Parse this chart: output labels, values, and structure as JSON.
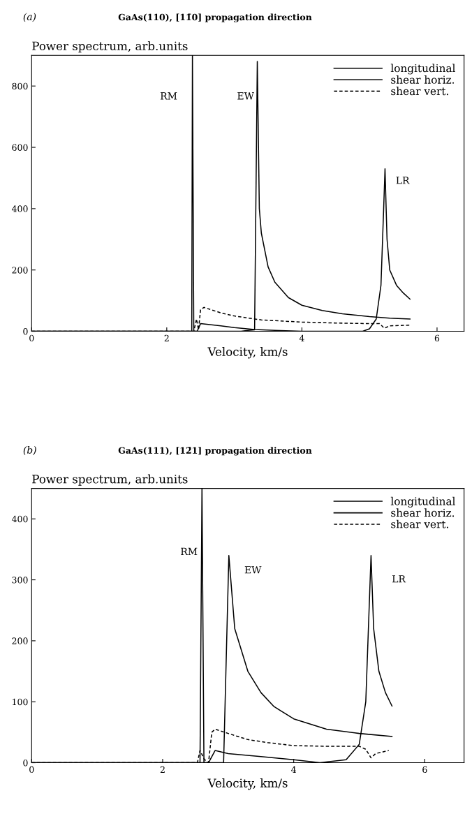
{
  "chart_data": [
    {
      "type": "line",
      "title": "GaAs(110), [11̄0] propagation direction",
      "xlabel": "Velocity, km/s",
      "ylabel": "Power spectrum, arb.units",
      "xlim": [
        0,
        6.4
      ],
      "ylim": [
        0,
        900
      ],
      "xticks": [
        0,
        2,
        4,
        6
      ],
      "yticks": [
        0,
        200,
        400,
        600,
        800
      ],
      "grid": false,
      "legend": "top right",
      "marker": "none",
      "annotations": [
        "(a)",
        "RM",
        "EW",
        "LR"
      ],
      "series": [
        {
          "name": "longitudinal",
          "color": "#000000",
          "line_style": "solid",
          "x": [
            0,
            2.37,
            2.38,
            2.4,
            2.45,
            2.5,
            2.8,
            3.0,
            3.3,
            3.6,
            4.0,
            4.9,
            5.0,
            5.1,
            5.17,
            5.21,
            5.23,
            5.26,
            5.3,
            5.4,
            5.5,
            5.6
          ],
          "values": [
            0,
            0,
            900,
            0,
            0,
            25,
            18,
            12,
            6,
            3,
            0,
            0,
            8,
            40,
            150,
            400,
            530,
            300,
            200,
            150,
            125,
            105
          ]
        },
        {
          "name": "shear horiz.",
          "color": "#000000",
          "line_style": "solid",
          "x": [
            0,
            3.1,
            3.2,
            3.3,
            3.34,
            3.37,
            3.4,
            3.5,
            3.6,
            3.8,
            4.0,
            4.3,
            4.6,
            5.0,
            5.3,
            5.6
          ],
          "values": [
            0,
            0,
            3,
            5,
            880,
            400,
            320,
            210,
            160,
            110,
            85,
            68,
            57,
            48,
            43,
            40
          ]
        },
        {
          "name": "shear vert.",
          "color": "#000000",
          "line_style": "dashed",
          "x": [
            0,
            2.4,
            2.44,
            2.47,
            2.5,
            2.55,
            2.8,
            3.0,
            3.4,
            4.0,
            4.5,
            5.0,
            5.15,
            5.22,
            5.3,
            5.6
          ],
          "values": [
            0,
            0,
            40,
            5,
            70,
            78,
            60,
            50,
            37,
            30,
            27,
            25,
            25,
            10,
            18,
            20
          ]
        }
      ]
    },
    {
      "type": "line",
      "title": "GaAs(111), [12̄1] propagation direction",
      "xlabel": "Velocity, km/s",
      "ylabel": "Power spectrum, arb.units",
      "xlim": [
        0,
        6.6
      ],
      "ylim": [
        0,
        450
      ],
      "xticks": [
        0,
        2,
        4,
        6
      ],
      "yticks": [
        0,
        100,
        200,
        300,
        400
      ],
      "grid": false,
      "legend": "top right",
      "marker": "none",
      "annotations": [
        "(b)",
        "RM",
        "EW",
        "LR"
      ],
      "series": [
        {
          "name": "longitudinal",
          "color": "#000000",
          "line_style": "solid",
          "x": [
            0,
            2.57,
            2.6,
            2.63,
            2.7,
            2.8,
            3.0,
            3.5,
            4.0,
            4.4,
            4.8,
            5.0,
            5.1,
            5.15,
            5.18,
            5.22,
            5.3,
            5.4,
            5.5
          ],
          "values": [
            0,
            0,
            450,
            0,
            0,
            20,
            15,
            10,
            5,
            0,
            5,
            30,
            100,
            250,
            340,
            220,
            150,
            115,
            93
          ]
        },
        {
          "name": "shear horiz.",
          "color": "#000000",
          "line_style": "solid",
          "x": [
            0,
            2.93,
            3.01,
            3.1,
            3.3,
            3.5,
            3.7,
            4.0,
            4.5,
            5.0,
            5.5
          ],
          "values": [
            0,
            0,
            340,
            220,
            150,
            115,
            92,
            72,
            55,
            48,
            43
          ]
        },
        {
          "name": "shear vert.",
          "color": "#000000",
          "line_style": "dashed",
          "x": [
            0,
            2.53,
            2.57,
            2.64,
            2.7,
            2.75,
            2.8,
            3.0,
            3.3,
            3.6,
            4.0,
            4.5,
            5.0,
            5.1,
            5.18,
            5.25,
            5.45
          ],
          "values": [
            0,
            0,
            20,
            5,
            0,
            50,
            55,
            48,
            38,
            33,
            28,
            27,
            27,
            22,
            8,
            15,
            20
          ]
        }
      ]
    }
  ]
}
